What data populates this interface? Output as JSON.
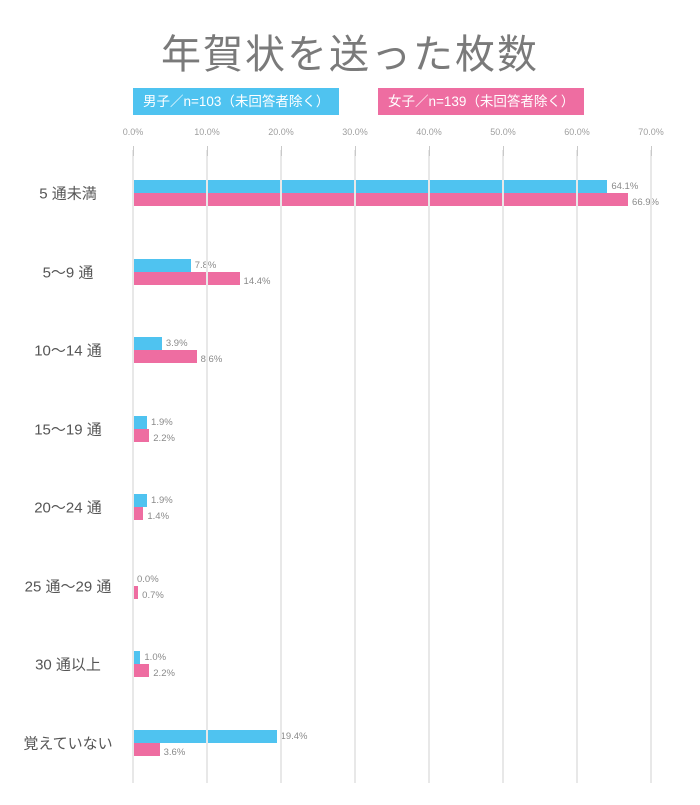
{
  "chart_data": {
    "type": "bar",
    "orientation": "horizontal",
    "title": "年賀状を送った枚数",
    "categories": [
      "5 通未満",
      "5〜9 通",
      "10〜14 通",
      "15〜19 通",
      "20〜24 通",
      "25 通〜29 通",
      "30 通以上",
      "覚えていない"
    ],
    "series": [
      {
        "name": "男子／n=103（未回答者除く）",
        "color": "#4FC3F0",
        "values": [
          64.1,
          7.8,
          3.9,
          1.9,
          1.9,
          0.0,
          1.0,
          19.4
        ]
      },
      {
        "name": "女子／n=139（未回答者除く）",
        "color": "#EE6DA1",
        "values": [
          66.9,
          14.4,
          8.6,
          2.2,
          1.4,
          0.7,
          2.2,
          3.6
        ]
      }
    ],
    "x_ticks": [
      "0.0%",
      "10.0%",
      "20.0%",
      "30.0%",
      "40.0%",
      "50.0%",
      "60.0%",
      "70.0%"
    ],
    "xlim": [
      0,
      70
    ],
    "xlabel": "",
    "ylabel": "",
    "grid": true,
    "legend_position": "top",
    "value_label_format": "0.0%"
  }
}
